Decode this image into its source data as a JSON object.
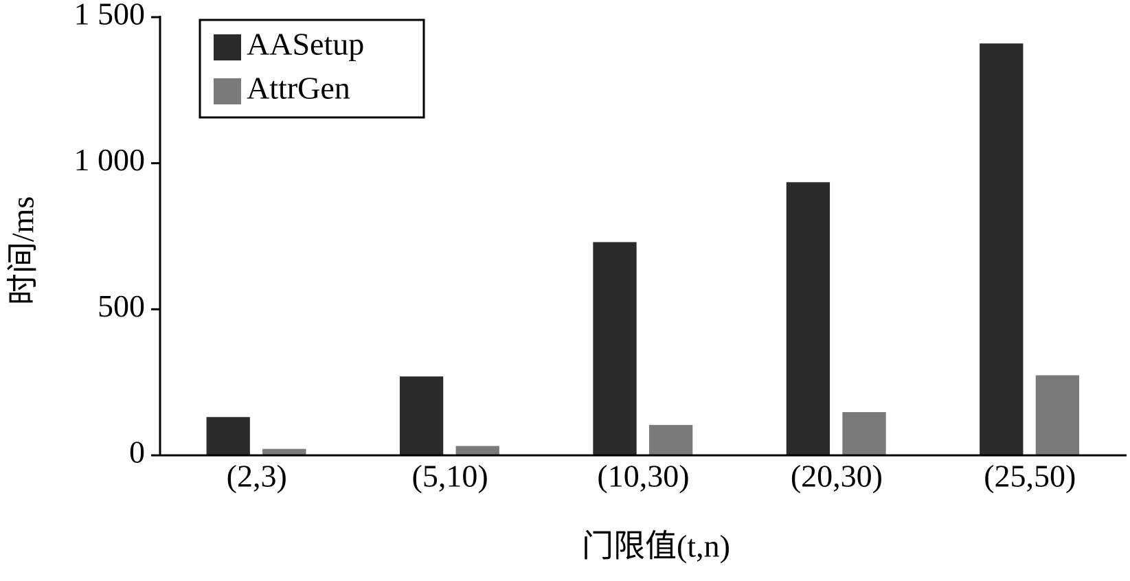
{
  "chart_data": {
    "type": "bar",
    "ylabel": "时间/ms",
    "xlabel": "门限值(t,n)",
    "categories": [
      "(2,3)",
      "(5,10)",
      "(10,30)",
      "(20,30)",
      "(25,50)"
    ],
    "series": [
      {
        "name": "AASetup",
        "color": "#2b2b2b",
        "values": [
          131,
          270,
          730,
          935,
          1410
        ]
      },
      {
        "name": "AttrGen",
        "color": "#7a7a7a",
        "values": [
          22,
          32,
          104,
          148,
          274
        ]
      }
    ],
    "ylim": [
      0,
      1500
    ],
    "yticks": [
      0,
      500,
      {
        "value": 1000,
        "label": "1 000"
      },
      {
        "value": 1500,
        "label": "1 500"
      }
    ],
    "grid": false,
    "legend": "upper left"
  }
}
